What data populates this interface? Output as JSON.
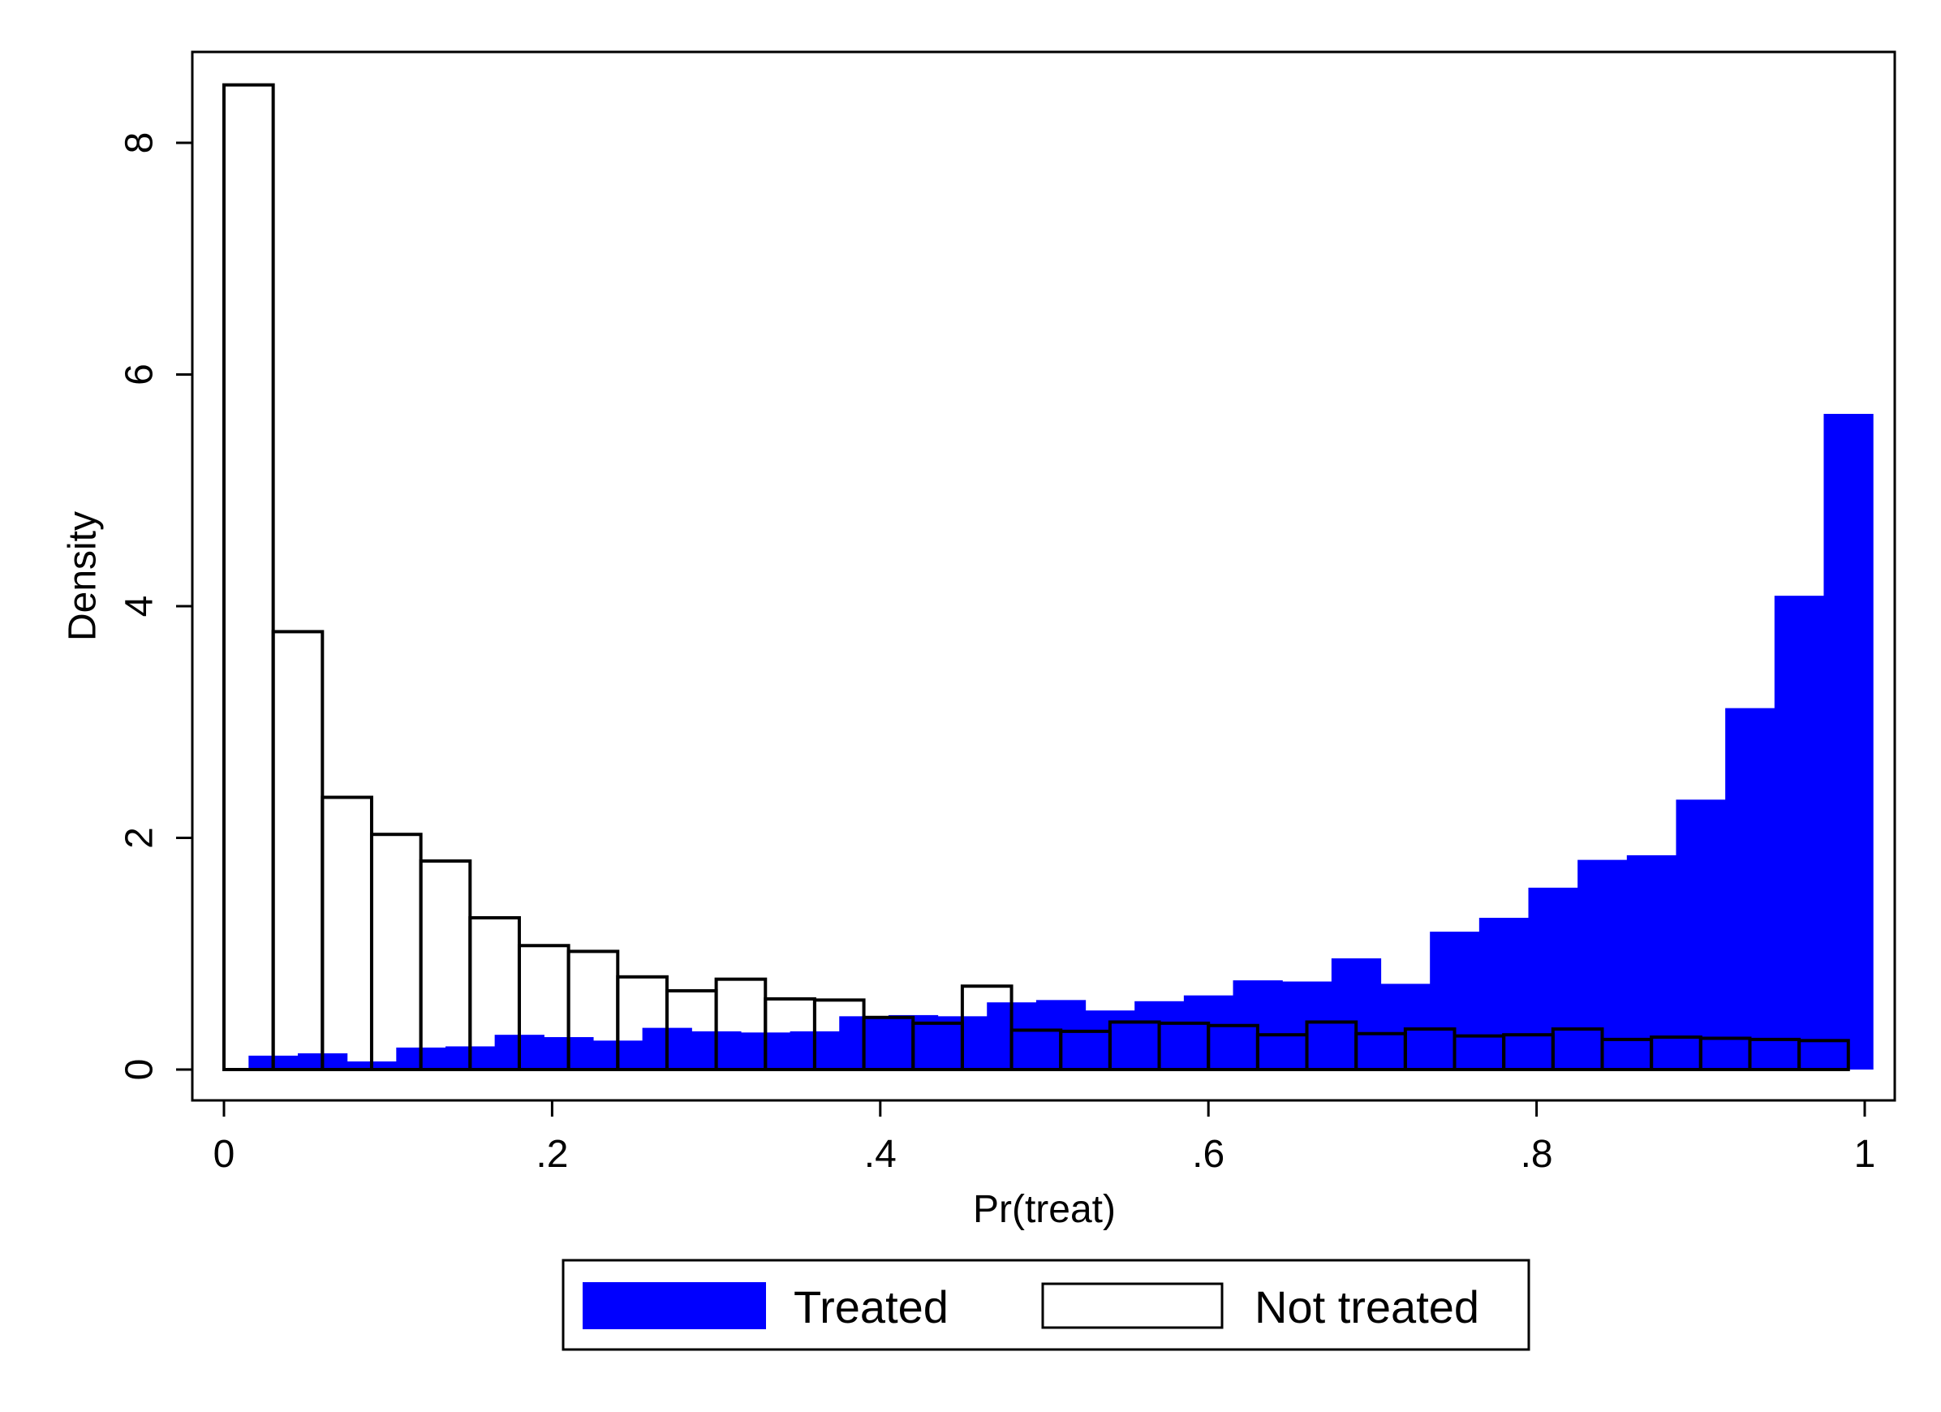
{
  "chart_data": {
    "type": "bar",
    "subtype": "overlaid-histogram",
    "title": "",
    "xlabel": "Pr(treat)",
    "ylabel": "Density",
    "xlim": [
      -0.02,
      1.02
    ],
    "ylim": [
      -0.27,
      8.75
    ],
    "xticks": [
      0,
      0.2,
      0.4,
      0.6,
      0.8,
      1
    ],
    "xtick_labels": [
      "0",
      ".2",
      ".4",
      ".6",
      ".8",
      "1"
    ],
    "yticks": [
      0,
      2,
      4,
      6,
      8
    ],
    "ytick_labels": [
      "0",
      "2",
      "4",
      "6",
      "8"
    ],
    "grid": false,
    "legend_position": "bottom",
    "series": [
      {
        "name": "Treated",
        "color": "#0000ff",
        "style": "filled",
        "bins": [
          {
            "x0": 0.015,
            "x1": 0.045,
            "value": 0.12
          },
          {
            "x0": 0.045,
            "x1": 0.075,
            "value": 0.14
          },
          {
            "x0": 0.075,
            "x1": 0.105,
            "value": 0.07
          },
          {
            "x0": 0.105,
            "x1": 0.135,
            "value": 0.19
          },
          {
            "x0": 0.135,
            "x1": 0.165,
            "value": 0.2
          },
          {
            "x0": 0.165,
            "x1": 0.195,
            "value": 0.3
          },
          {
            "x0": 0.195,
            "x1": 0.225,
            "value": 0.28
          },
          {
            "x0": 0.225,
            "x1": 0.255,
            "value": 0.25
          },
          {
            "x0": 0.255,
            "x1": 0.285,
            "value": 0.36
          },
          {
            "x0": 0.285,
            "x1": 0.315,
            "value": 0.33
          },
          {
            "x0": 0.315,
            "x1": 0.345,
            "value": 0.32
          },
          {
            "x0": 0.345,
            "x1": 0.375,
            "value": 0.33
          },
          {
            "x0": 0.375,
            "x1": 0.405,
            "value": 0.46
          },
          {
            "x0": 0.405,
            "x1": 0.435,
            "value": 0.47
          },
          {
            "x0": 0.435,
            "x1": 0.465,
            "value": 0.46
          },
          {
            "x0": 0.465,
            "x1": 0.495,
            "value": 0.58
          },
          {
            "x0": 0.495,
            "x1": 0.525,
            "value": 0.6
          },
          {
            "x0": 0.525,
            "x1": 0.555,
            "value": 0.51
          },
          {
            "x0": 0.555,
            "x1": 0.585,
            "value": 0.59
          },
          {
            "x0": 0.585,
            "x1": 0.615,
            "value": 0.64
          },
          {
            "x0": 0.615,
            "x1": 0.645,
            "value": 0.77
          },
          {
            "x0": 0.645,
            "x1": 0.675,
            "value": 0.76
          },
          {
            "x0": 0.675,
            "x1": 0.705,
            "value": 0.96
          },
          {
            "x0": 0.705,
            "x1": 0.735,
            "value": 0.74
          },
          {
            "x0": 0.735,
            "x1": 0.765,
            "value": 1.19
          },
          {
            "x0": 0.765,
            "x1": 0.795,
            "value": 1.31
          },
          {
            "x0": 0.795,
            "x1": 0.825,
            "value": 1.57
          },
          {
            "x0": 0.825,
            "x1": 0.855,
            "value": 1.81
          },
          {
            "x0": 0.855,
            "x1": 0.885,
            "value": 1.85
          },
          {
            "x0": 0.885,
            "x1": 0.915,
            "value": 2.33
          },
          {
            "x0": 0.915,
            "x1": 0.945,
            "value": 3.12
          },
          {
            "x0": 0.945,
            "x1": 0.975,
            "value": 4.09
          },
          {
            "x0": 0.975,
            "x1": 1.005,
            "value": 5.66
          }
        ]
      },
      {
        "name": "Not treated",
        "color": "#000000",
        "style": "outline",
        "bins": [
          {
            "x0": 0.0,
            "x1": 0.03,
            "value": 8.5
          },
          {
            "x0": 0.03,
            "x1": 0.06,
            "value": 3.78
          },
          {
            "x0": 0.06,
            "x1": 0.09,
            "value": 2.35
          },
          {
            "x0": 0.09,
            "x1": 0.12,
            "value": 2.03
          },
          {
            "x0": 0.12,
            "x1": 0.15,
            "value": 1.8
          },
          {
            "x0": 0.15,
            "x1": 0.18,
            "value": 1.31
          },
          {
            "x0": 0.18,
            "x1": 0.21,
            "value": 1.07
          },
          {
            "x0": 0.21,
            "x1": 0.24,
            "value": 1.02
          },
          {
            "x0": 0.24,
            "x1": 0.27,
            "value": 0.8
          },
          {
            "x0": 0.27,
            "x1": 0.3,
            "value": 0.68
          },
          {
            "x0": 0.3,
            "x1": 0.33,
            "value": 0.78
          },
          {
            "x0": 0.33,
            "x1": 0.36,
            "value": 0.61
          },
          {
            "x0": 0.36,
            "x1": 0.39,
            "value": 0.6
          },
          {
            "x0": 0.39,
            "x1": 0.42,
            "value": 0.45
          },
          {
            "x0": 0.42,
            "x1": 0.45,
            "value": 0.4
          },
          {
            "x0": 0.45,
            "x1": 0.48,
            "value": 0.72
          },
          {
            "x0": 0.48,
            "x1": 0.51,
            "value": 0.34
          },
          {
            "x0": 0.51,
            "x1": 0.54,
            "value": 0.33
          },
          {
            "x0": 0.54,
            "x1": 0.57,
            "value": 0.41
          },
          {
            "x0": 0.57,
            "x1": 0.6,
            "value": 0.4
          },
          {
            "x0": 0.6,
            "x1": 0.63,
            "value": 0.38
          },
          {
            "x0": 0.63,
            "x1": 0.66,
            "value": 0.3
          },
          {
            "x0": 0.66,
            "x1": 0.69,
            "value": 0.41
          },
          {
            "x0": 0.69,
            "x1": 0.72,
            "value": 0.31
          },
          {
            "x0": 0.72,
            "x1": 0.75,
            "value": 0.35
          },
          {
            "x0": 0.75,
            "x1": 0.78,
            "value": 0.29
          },
          {
            "x0": 0.78,
            "x1": 0.81,
            "value": 0.3
          },
          {
            "x0": 0.81,
            "x1": 0.84,
            "value": 0.35
          },
          {
            "x0": 0.84,
            "x1": 0.87,
            "value": 0.26
          },
          {
            "x0": 0.87,
            "x1": 0.9,
            "value": 0.28
          },
          {
            "x0": 0.9,
            "x1": 0.93,
            "value": 0.27
          },
          {
            "x0": 0.93,
            "x1": 0.96,
            "value": 0.26
          },
          {
            "x0": 0.96,
            "x1": 0.99,
            "value": 0.25
          }
        ]
      }
    ]
  },
  "legend": {
    "items": [
      {
        "label": "Treated",
        "color": "#0000ff",
        "style": "filled"
      },
      {
        "label": "Not treated",
        "color": "#000000",
        "style": "outline"
      }
    ]
  }
}
